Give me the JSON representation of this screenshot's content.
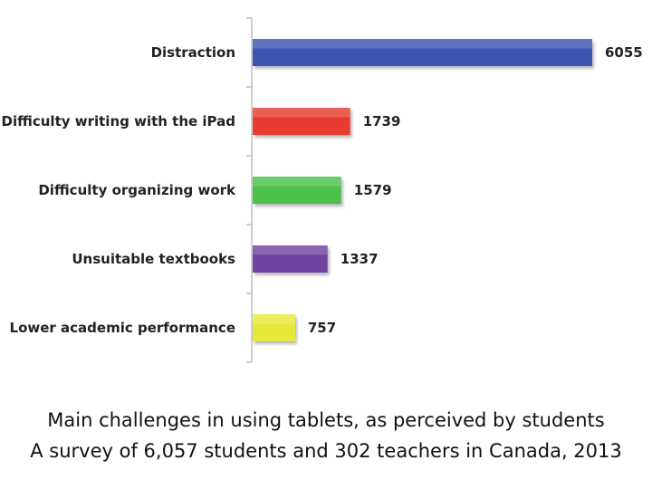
{
  "chart_data": {
    "type": "bar",
    "orientation": "horizontal",
    "title": "Main challenges in using tablets, as perceived by students",
    "subtitle": "A survey of 6,057 students and 302 teachers in Canada, 2013",
    "categories": [
      "Distraction",
      "Difficulty writing with the iPad",
      "Difficulty organizing work",
      "Unsuitable textbooks",
      "Lower academic performance"
    ],
    "values": [
      6055,
      1739,
      1579,
      1337,
      757
    ],
    "value_labels": [
      "6055",
      "1739",
      "1579",
      "1337",
      "757"
    ],
    "colors": [
      "#3b54b0",
      "#e63a2e",
      "#4cc04c",
      "#6f42a2",
      "#e8e83a"
    ],
    "xlim": [
      0,
      6055
    ],
    "grid": false,
    "legend": "none"
  }
}
